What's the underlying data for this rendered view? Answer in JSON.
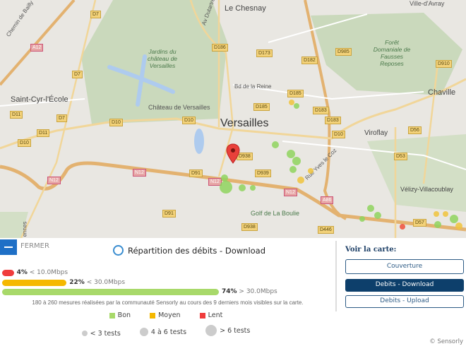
{
  "map": {
    "labels": {
      "le_chesnay": "Le Chesnay",
      "ville_davray": "Ville-d'Avray",
      "chemin_bailly": "Chemin de Bailly",
      "av_dutartre": "Av Dutartre",
      "jardins": "Jardins du château de Versailles",
      "foret": "Forêt Domaniale de Fausses Reposes",
      "saint_cyr": "Saint-Cyr-l'École",
      "chateau": "Château de Versailles",
      "versailles": "Versailles",
      "bd_reine": "Bd de la Reine",
      "chaville": "Chaville",
      "viroflay": "Viroflay",
      "rue_yves": "Rue Yves le Coz",
      "velizy": "Vélizy-Villacoublay",
      "golf": "Golf de La Boulie",
      "rennes": "ennes"
    },
    "roads": [
      "A12",
      "D7",
      "D7",
      "D7",
      "D11",
      "D11",
      "D10",
      "D10",
      "D10",
      "D186",
      "D173",
      "D182",
      "D985",
      "D910",
      "D185",
      "D185",
      "D183",
      "D183",
      "D10",
      "D56",
      "D53",
      "D938",
      "D939",
      "D91",
      "D91",
      "N12",
      "N12",
      "N12",
      "N12",
      "A86",
      "D938",
      "D446",
      "D57"
    ],
    "marker_colors": {
      "bon": "#8fd45e",
      "moyen": "#f0c33c",
      "lent": "#f0503c"
    }
  },
  "panel": {
    "close_label": "FERMER",
    "title": "Répartition des débits - Download",
    "bars": [
      {
        "pct": "4%",
        "pct_value": 4,
        "range": "< 10.0Mbps",
        "color": "#f03c3c"
      },
      {
        "pct": "22%",
        "pct_value": 22,
        "range": "< 30.0Mbps",
        "color": "#f5b800"
      },
      {
        "pct": "74%",
        "pct_value": 74,
        "range": "> 30.0Mbps",
        "color": "#a8d96a"
      }
    ],
    "note": "180 à 260 mesures réalisées par la communauté Sensorly au cours des 9 derniers mois visibles sur la carte.",
    "legend": [
      {
        "label": "Bon",
        "color": "#a8d96a"
      },
      {
        "label": "Moyen",
        "color": "#f5b800"
      },
      {
        "label": "Lent",
        "color": "#f03c3c"
      }
    ],
    "sizes": [
      "< 3 tests",
      "4 à 6 tests",
      "> 6 tests"
    ],
    "voir": "Voir la carte:",
    "buttons": [
      {
        "label": "Couverture",
        "active": false
      },
      {
        "label": "Debits - Download",
        "active": true
      },
      {
        "label": "Debits - Upload",
        "active": false
      }
    ],
    "copyright": "© Sensorly"
  }
}
